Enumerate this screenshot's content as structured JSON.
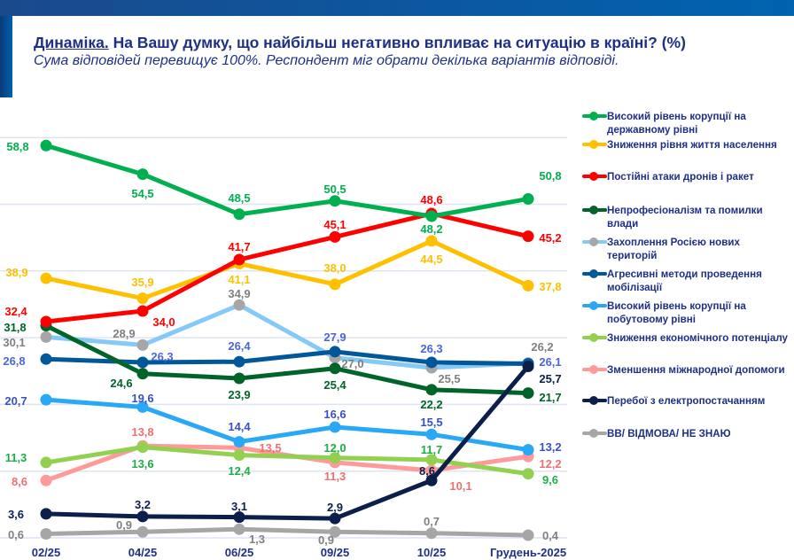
{
  "header": {
    "title_prefix": "Динаміка.",
    "title": "На Вашу думку, що найбільш негативно впливає на ситуацію в країні? (%)",
    "subtitle": "Сума відповідей перевищує 100%. Респондент міг обрати декілька варіантів відповіді."
  },
  "chart_data": {
    "type": "line",
    "categories": [
      "02/25",
      "04/25",
      "06/25",
      "09/25",
      "10/25",
      "Грудень-2025"
    ],
    "ylim": [
      0,
      60
    ],
    "grid": true,
    "legend_position": "right",
    "series": [
      {
        "name": "Високий рівень корупції на державному рівні",
        "color": "#00b050",
        "marker_color": "#00b050",
        "label_color": "#00b050",
        "values": [
          58.8,
          54.5,
          48.5,
          50.5,
          48.2,
          50.8
        ],
        "labels": [
          "58,8",
          "54,5",
          "48,5",
          "50,5",
          "48,2",
          "50,8"
        ]
      },
      {
        "name": "Зниження рівня життя населення",
        "color": "#ffc000",
        "marker_color": "#ffc000",
        "label_color": "#ffc000",
        "values": [
          38.9,
          35.9,
          41.1,
          38.0,
          44.5,
          37.8
        ],
        "labels": [
          "38,9",
          "35,9",
          "41,1",
          "38,0",
          "44,5",
          "37,8"
        ]
      },
      {
        "name": "Постійні атаки дронів і ракет",
        "color": "#ff0000",
        "marker_color": "#ff0000",
        "label_color": "#ff0000",
        "values": [
          32.4,
          34.0,
          41.7,
          45.1,
          48.6,
          45.2
        ],
        "labels": [
          "32,4",
          "34,0",
          "41,7",
          "45,1",
          "48,6",
          "45,2"
        ]
      },
      {
        "name": "Непрофесіоналізм та помилки влади",
        "color": "#00642a",
        "marker_color": "#00642a",
        "label_color": "#00642a",
        "values": [
          31.8,
          24.6,
          23.9,
          25.4,
          22.2,
          21.7
        ],
        "labels": [
          "31,8",
          "24,6",
          "23,9",
          "25,4",
          "22,2",
          "21,7"
        ]
      },
      {
        "name": "Захоплення Росією нових територій",
        "color": "#85c9f7",
        "marker_color": "#a6a6a6",
        "label_color": "#808080",
        "values": [
          30.1,
          28.9,
          34.9,
          27.0,
          25.5,
          26.2
        ],
        "labels": [
          "30,1",
          "28,9",
          "34,9",
          "27,0",
          "25,5",
          "26,2"
        ]
      },
      {
        "name": "Агресивні методи проведення мобілізації",
        "color": "#00579a",
        "marker_color": "#00579a",
        "label_color": "#4a66d8",
        "values": [
          26.8,
          26.3,
          26.4,
          27.9,
          26.3,
          26.1
        ],
        "labels": [
          "26,8",
          "26,3",
          "26,4",
          "27,9",
          "26,3",
          "26,1"
        ]
      },
      {
        "name": "Високий рівень корупції на побутовому рівні",
        "color": "#2aa8f8",
        "marker_color": "#2aa8f8",
        "label_color": "#3a50c8",
        "values": [
          20.7,
          19.6,
          14.4,
          16.6,
          15.5,
          13.2
        ],
        "labels": [
          "20,7",
          "19,6",
          "14,4",
          "16,6",
          "15,5",
          "13,2"
        ]
      },
      {
        "name": "Зниження економічного потенціалу",
        "color": "#92d050",
        "marker_color": "#92d050",
        "label_color": "#1fae48",
        "values": [
          11.3,
          13.6,
          12.4,
          12.0,
          11.7,
          9.6
        ],
        "labels": [
          "11,3",
          "13,6",
          "12,4",
          "12,0",
          "11,7",
          "9,6"
        ]
      },
      {
        "name": "Зменшення міжнародної допомоги",
        "color": "#ff9a9a",
        "marker_color": "#ff9a9a",
        "label_color": "#f07070",
        "values": [
          8.6,
          13.8,
          13.5,
          11.3,
          10.1,
          12.2
        ],
        "labels": [
          "8,6",
          "13,8",
          "13,5",
          "11,3",
          "10,1",
          "12,2"
        ]
      },
      {
        "name": "Перебої з електропостачанням",
        "color": "#0c1f4a",
        "marker_color": "#0c1f4a",
        "label_color": "#0c1f4a",
        "values": [
          3.6,
          3.2,
          3.1,
          2.9,
          8.6,
          25.7
        ],
        "labels": [
          "3,6",
          "3,2",
          "3,1",
          "2,9",
          "8,6",
          "25,7"
        ]
      },
      {
        "name": "ВВ/ ВІДМОВА/ НЕ ЗНАЮ",
        "color": "#a6a6a6",
        "marker_color": "#a6a6a6",
        "label_color": "#808080",
        "values": [
          0.6,
          0.9,
          1.3,
          0.9,
          0.7,
          0.4
        ],
        "labels": [
          "0,6",
          "0,9",
          "1,3",
          "0,9",
          "0,7",
          "0,4"
        ]
      }
    ]
  }
}
